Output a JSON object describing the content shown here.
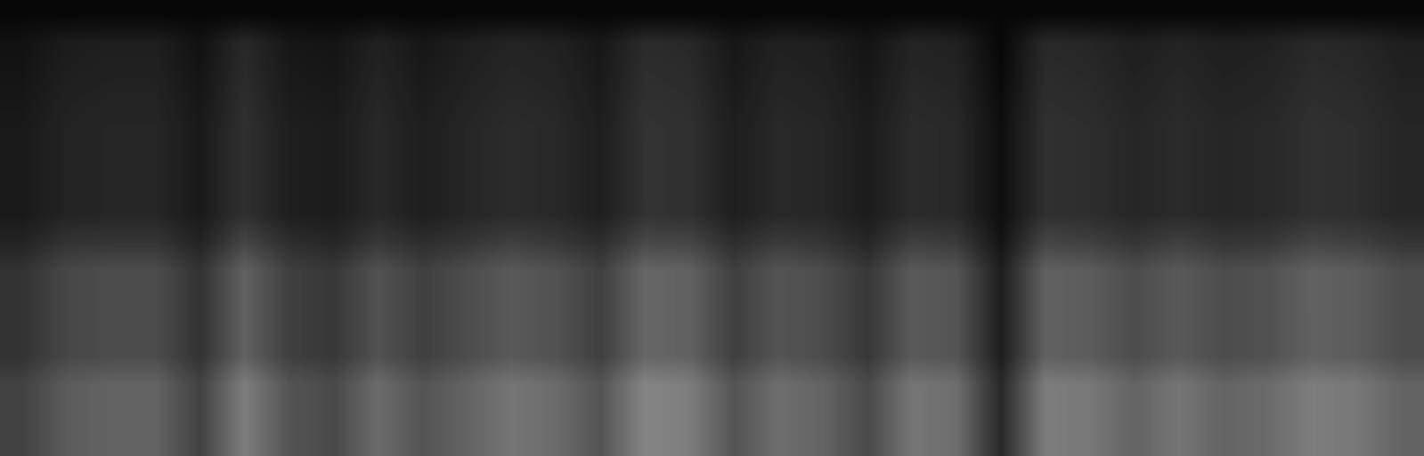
{
  "chart_data": {
    "type": "heatmap",
    "tick_labels": false,
    "color": "gray",
    "value_range": [
      0,
      100
    ],
    "cells": [
      [
        3,
        3,
        3,
        3,
        3,
        3,
        3,
        3,
        3,
        3,
        3,
        3,
        3,
        3,
        3,
        3,
        3,
        3,
        3,
        3,
        3,
        3,
        3,
        3,
        3,
        3,
        3,
        3,
        3,
        3,
        3,
        3
      ],
      [
        7,
        11,
        12,
        12,
        7,
        16,
        9,
        8,
        13,
        9,
        12,
        14,
        13,
        9,
        17,
        16,
        9,
        13,
        12,
        8,
        14,
        13,
        3,
        16,
        15,
        12,
        14,
        12,
        13,
        16,
        15,
        12
      ],
      [
        8,
        12,
        13,
        13,
        8,
        17,
        10,
        9,
        14,
        10,
        13,
        15,
        14,
        10,
        18,
        17,
        10,
        14,
        13,
        9,
        15,
        14,
        4,
        17,
        16,
        13,
        15,
        13,
        14,
        17,
        16,
        13
      ],
      [
        9,
        13,
        14,
        14,
        9,
        18,
        11,
        10,
        15,
        11,
        14,
        16,
        15,
        11,
        19,
        18,
        11,
        15,
        14,
        10,
        16,
        15,
        5,
        18,
        17,
        14,
        16,
        14,
        15,
        18,
        17,
        14
      ],
      [
        10,
        14,
        15,
        15,
        10,
        19,
        12,
        11,
        16,
        12,
        15,
        17,
        16,
        12,
        20,
        19,
        12,
        16,
        15,
        11,
        17,
        16,
        6,
        19,
        18,
        15,
        17,
        15,
        16,
        19,
        18,
        15
      ],
      [
        10,
        14,
        15,
        15,
        10,
        19,
        12,
        11,
        16,
        12,
        15,
        17,
        16,
        12,
        20,
        19,
        12,
        16,
        15,
        11,
        17,
        16,
        6,
        19,
        18,
        15,
        17,
        15,
        16,
        19,
        18,
        15
      ],
      [
        10,
        14,
        15,
        15,
        10,
        19,
        12,
        11,
        16,
        12,
        15,
        17,
        16,
        12,
        20,
        19,
        12,
        16,
        15,
        11,
        17,
        16,
        6,
        19,
        18,
        15,
        17,
        15,
        16,
        19,
        18,
        15
      ],
      [
        10,
        14,
        15,
        15,
        10,
        19,
        12,
        11,
        16,
        12,
        15,
        17,
        16,
        12,
        20,
        19,
        12,
        16,
        15,
        11,
        17,
        16,
        6,
        19,
        18,
        15,
        17,
        15,
        16,
        19,
        18,
        15
      ],
      [
        14,
        20,
        21,
        21,
        14,
        27,
        18,
        15,
        22,
        18,
        21,
        25,
        22,
        18,
        28,
        27,
        18,
        23,
        21,
        15,
        25,
        23,
        8,
        27,
        25,
        21,
        25,
        21,
        22,
        27,
        25,
        21
      ],
      [
        20,
        28,
        30,
        30,
        20,
        38,
        25,
        22,
        32,
        25,
        30,
        35,
        32,
        25,
        40,
        38,
        25,
        33,
        30,
        22,
        35,
        33,
        12,
        38,
        36,
        30,
        35,
        30,
        32,
        38,
        36,
        30
      ],
      [
        20,
        28,
        30,
        30,
        20,
        38,
        25,
        22,
        32,
        25,
        30,
        35,
        32,
        25,
        40,
        38,
        25,
        33,
        30,
        22,
        35,
        33,
        12,
        38,
        36,
        30,
        35,
        30,
        32,
        38,
        36,
        30
      ],
      [
        20,
        28,
        30,
        30,
        20,
        38,
        25,
        22,
        32,
        25,
        30,
        35,
        32,
        25,
        40,
        38,
        25,
        33,
        30,
        22,
        35,
        33,
        12,
        38,
        36,
        30,
        35,
        30,
        32,
        38,
        36,
        30
      ],
      [
        20,
        28,
        30,
        30,
        20,
        38,
        25,
        22,
        32,
        25,
        30,
        35,
        32,
        25,
        40,
        38,
        25,
        33,
        30,
        22,
        35,
        33,
        12,
        38,
        36,
        30,
        35,
        30,
        32,
        38,
        36,
        30
      ],
      [
        26,
        36,
        39,
        39,
        26,
        49,
        33,
        29,
        42,
        33,
        39,
        46,
        42,
        33,
        52,
        49,
        33,
        43,
        39,
        29,
        46,
        43,
        16,
        49,
        47,
        39,
        46,
        39,
        42,
        49,
        47,
        39
      ],
      [
        26,
        36,
        39,
        39,
        26,
        49,
        33,
        29,
        42,
        33,
        39,
        46,
        42,
        33,
        52,
        49,
        33,
        43,
        39,
        29,
        46,
        43,
        16,
        49,
        47,
        39,
        46,
        39,
        42,
        49,
        47,
        39
      ],
      [
        26,
        36,
        39,
        39,
        26,
        49,
        33,
        29,
        42,
        33,
        39,
        46,
        42,
        33,
        52,
        49,
        33,
        43,
        39,
        29,
        46,
        43,
        16,
        49,
        47,
        39,
        46,
        39,
        42,
        49,
        47,
        39
      ]
    ]
  }
}
